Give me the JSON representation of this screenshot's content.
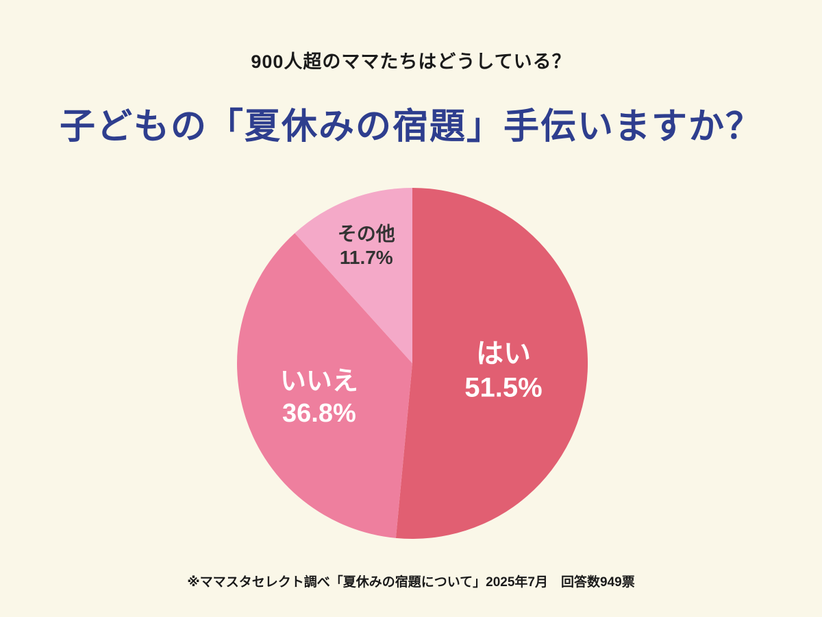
{
  "page": {
    "background": "#faf7e8",
    "subtitle": "900人超のママたちはどうしている？",
    "title": "子どもの「夏休みの宿題」手伝いますか？",
    "title_color": "#2e3e8e",
    "footnote": "※ママスタセレクト調べ「夏休みの宿題について」2025年7月　回答数949票"
  },
  "chart_data": {
    "type": "pie",
    "title": "子どもの「夏休みの宿題」手伝いますか？",
    "legend": "none",
    "start_angle_deg": 0,
    "direction": "clockwise",
    "slices": [
      {
        "label": "はい",
        "value": 51.5,
        "display": "51.5%",
        "color": "#e15f72",
        "label_color": "#ffffff"
      },
      {
        "label": "いいえ",
        "value": 36.8,
        "display": "36.8%",
        "color": "#ee7f9e",
        "label_color": "#ffffff"
      },
      {
        "label": "その他",
        "value": 11.7,
        "display": "11.7%",
        "color": "#f4a9c8",
        "label_color": "#333333"
      }
    ],
    "label_radius_frac": [
      0.52,
      0.56,
      0.73
    ],
    "label_font_px": [
      40,
      38,
      28
    ]
  }
}
